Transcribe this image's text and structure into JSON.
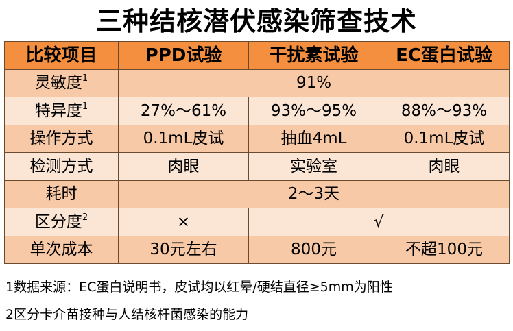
{
  "title": "三种结核潜伏感染筛查技术",
  "header": {
    "col0": "比较项目",
    "col1": "PPD试验",
    "col2": "干扰素试验",
    "col3": "EC蛋白试验"
  },
  "rows": {
    "sensitivity": {
      "label": "灵敏度",
      "sup": "1",
      "value": "91%"
    },
    "specificity": {
      "label": "特异度",
      "sup": "1",
      "ppd": "27%～61%",
      "ifn": "93%～95%",
      "ec": "88%～93%"
    },
    "method": {
      "label": "操作方式",
      "ppd": "0.1mL皮试",
      "ifn": "抽血4mL",
      "ec": "0.1mL皮试"
    },
    "detection": {
      "label": "检测方式",
      "ppd": "肉眼",
      "ifn": "实验室",
      "ec": "肉眼"
    },
    "time": {
      "label": "耗时",
      "value": "2～3天"
    },
    "discrimination": {
      "label": "区分度",
      "sup": "2",
      "ppd": "×",
      "other": "√"
    },
    "cost": {
      "label": "单次成本",
      "ppd": "30元左右",
      "ifn": "800元",
      "ec": "不超100元"
    }
  },
  "notes": {
    "note1": "1数据来源：EC蛋白说明书，皮试均以红晕/硬结直径≥5mm为阳性",
    "note2": "2区分卡介苗接种与人结核杆菌感染的能力"
  },
  "colors": {
    "header_bg": "#f38f3e",
    "row_dark": "#f7c9a6",
    "row_light": "#fbe5d4",
    "border": "#6b4a2e"
  }
}
